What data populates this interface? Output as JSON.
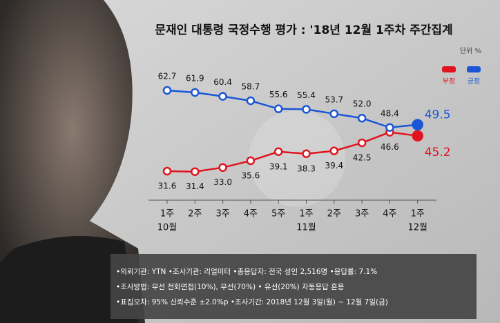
{
  "chart_data": {
    "type": "line",
    "title": "문재인 대통령 국정수행 평가 : '18년 12월 1주차 주간집계",
    "unit": "단위 %",
    "categories": [
      "1주",
      "2주",
      "3주",
      "4주",
      "5주",
      "1주",
      "2주",
      "3주",
      "4주",
      "1주"
    ],
    "month_labels": [
      "10월",
      null,
      null,
      null,
      null,
      "11월",
      null,
      null,
      null,
      "12월"
    ],
    "series": [
      {
        "name": "부정",
        "color": "#e0141e",
        "values": [
          31.6,
          31.4,
          33.0,
          35.6,
          39.1,
          38.3,
          39.4,
          42.5,
          46.6,
          45.2
        ],
        "value_labels": [
          "31.6",
          "31.4",
          "33.0",
          "35.6",
          "39.1",
          "38.3",
          "39.4",
          "42.5",
          "46.6",
          "45.2"
        ]
      },
      {
        "name": "긍정",
        "color": "#1a56d6",
        "values": [
          62.7,
          61.9,
          60.4,
          58.7,
          55.6,
          55.4,
          53.7,
          52.0,
          48.4,
          49.5
        ],
        "value_labels": [
          "62.7",
          "61.9",
          "60.4",
          "58.7",
          "55.6",
          "55.4",
          "53.7",
          "52.0",
          "48.4",
          "49.5"
        ]
      }
    ],
    "ylim": [
      25,
      70
    ],
    "notes": [
      "•의뢰기관: YTN  •조사기관: 리얼미터 •총응답자: 전국 성인 2,516명 •응답률: 7.1%",
      "•조사방법: 무선 전화면접(10%), 무선(70%) • 유선(20%) 자동응답 혼용",
      "•표집오차: 95% 신뢰수준 ±2.0%p   •조사기간: 2018년 12월 3일(월) ~ 12월 7일(금)"
    ]
  }
}
